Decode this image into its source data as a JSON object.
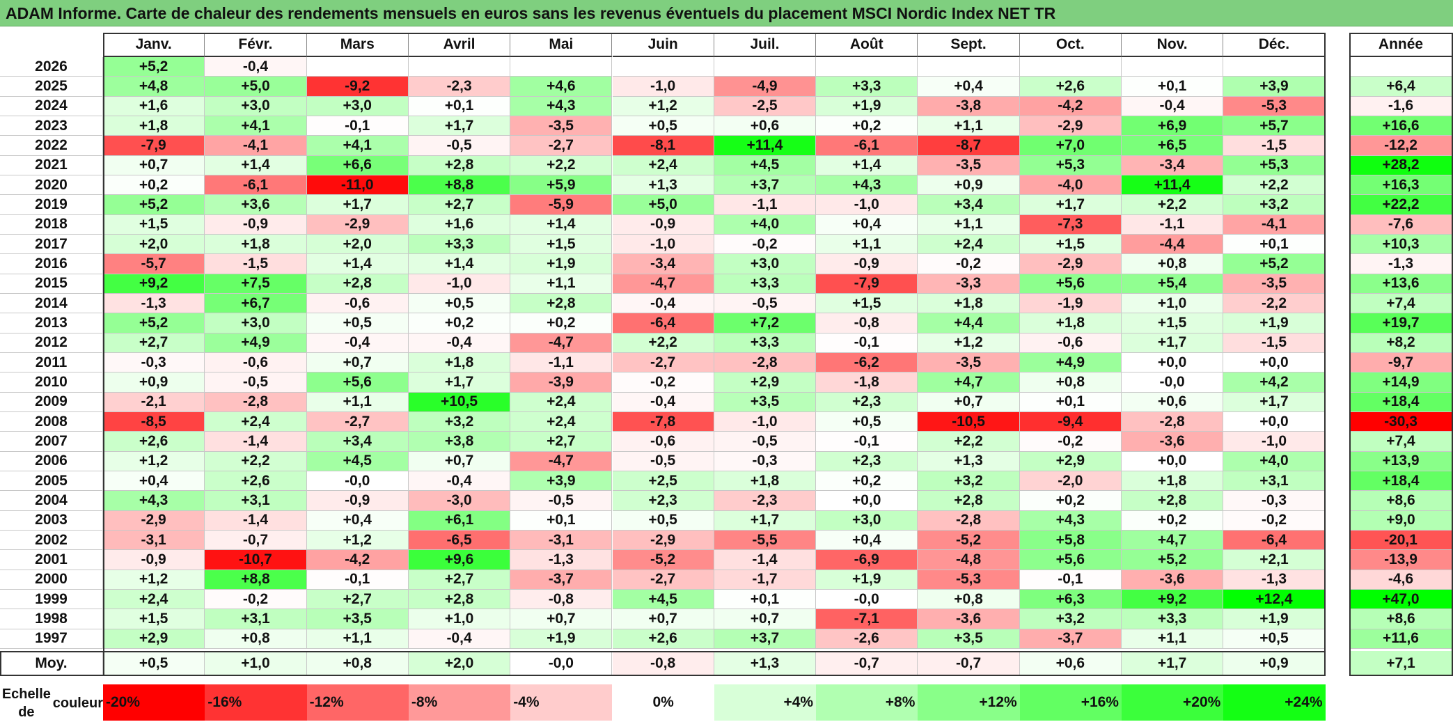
{
  "title": "ADAM Informe. Carte de chaleur des rendements mensuels en euros sans les revenus éventuels du placement MSCI Nordic Index NET TR",
  "chart_data": {
    "type": "heatmap",
    "months": [
      "Janv.",
      "Févr.",
      "Mars",
      "Avril",
      "Mai",
      "Juin",
      "Juil.",
      "Août",
      "Sept.",
      "Oct.",
      "Nov.",
      "Déc."
    ],
    "year_col_label": "Année",
    "rows": [
      {
        "year": "2026",
        "months": [
          "+5,2",
          "-0,4",
          "",
          "",
          "",
          "",
          "",
          "",
          "",
          "",
          "",
          ""
        ],
        "annual": ""
      },
      {
        "year": "2025",
        "months": [
          "+4,8",
          "+5,0",
          "-9,2",
          "-2,3",
          "+4,6",
          "-1,0",
          "-4,9",
          "+3,3",
          "+0,4",
          "+2,6",
          "+0,1",
          "+3,9"
        ],
        "annual": "+6,4"
      },
      {
        "year": "2024",
        "months": [
          "+1,6",
          "+3,0",
          "+3,0",
          "+0,1",
          "+4,3",
          "+1,2",
          "-2,5",
          "+1,9",
          "-3,8",
          "-4,2",
          "-0,4",
          "-5,3"
        ],
        "annual": "-1,6"
      },
      {
        "year": "2023",
        "months": [
          "+1,8",
          "+4,1",
          "-0,1",
          "+1,7",
          "-3,5",
          "+0,5",
          "+0,6",
          "+0,2",
          "+1,1",
          "-2,9",
          "+6,9",
          "+5,7"
        ],
        "annual": "+16,6"
      },
      {
        "year": "2022",
        "months": [
          "-7,9",
          "-4,1",
          "+4,1",
          "-0,5",
          "-2,7",
          "-8,1",
          "+11,4",
          "-6,1",
          "-8,7",
          "+7,0",
          "+6,5",
          "-1,5"
        ],
        "annual": "-12,2"
      },
      {
        "year": "2021",
        "months": [
          "+0,7",
          "+1,4",
          "+6,6",
          "+2,8",
          "+2,2",
          "+2,4",
          "+4,5",
          "+1,4",
          "-3,5",
          "+5,3",
          "-3,4",
          "+5,3"
        ],
        "annual": "+28,2"
      },
      {
        "year": "2020",
        "months": [
          "+0,2",
          "-6,1",
          "-11,0",
          "+8,8",
          "+5,9",
          "+1,3",
          "+3,7",
          "+4,3",
          "+0,9",
          "-4,0",
          "+11,4",
          "+2,2"
        ],
        "annual": "+16,3"
      },
      {
        "year": "2019",
        "months": [
          "+5,2",
          "+3,6",
          "+1,7",
          "+2,7",
          "-5,9",
          "+5,0",
          "-1,1",
          "-1,0",
          "+3,4",
          "+1,7",
          "+2,2",
          "+3,2"
        ],
        "annual": "+22,2"
      },
      {
        "year": "2018",
        "months": [
          "+1,5",
          "-0,9",
          "-2,9",
          "+1,6",
          "+1,4",
          "-0,9",
          "+4,0",
          "+0,4",
          "+1,1",
          "-7,3",
          "-1,1",
          "-4,1"
        ],
        "annual": "-7,6"
      },
      {
        "year": "2017",
        "months": [
          "+2,0",
          "+1,8",
          "+2,0",
          "+3,3",
          "+1,5",
          "-1,0",
          "-0,2",
          "+1,1",
          "+2,4",
          "+1,5",
          "-4,4",
          "+0,1"
        ],
        "annual": "+10,3"
      },
      {
        "year": "2016",
        "months": [
          "-5,7",
          "-1,5",
          "+1,4",
          "+1,4",
          "+1,9",
          "-3,4",
          "+3,0",
          "-0,9",
          "-0,2",
          "-2,9",
          "+0,8",
          "+5,2"
        ],
        "annual": "-1,3"
      },
      {
        "year": "2015",
        "months": [
          "+9,2",
          "+7,5",
          "+2,8",
          "-1,0",
          "+1,1",
          "-4,7",
          "+3,3",
          "-7,9",
          "-3,3",
          "+5,6",
          "+5,4",
          "-3,5"
        ],
        "annual": "+13,6"
      },
      {
        "year": "2014",
        "months": [
          "-1,3",
          "+6,7",
          "-0,6",
          "+0,5",
          "+2,8",
          "-0,4",
          "-0,5",
          "+1,5",
          "+1,8",
          "-1,9",
          "+1,0",
          "-2,2"
        ],
        "annual": "+7,4"
      },
      {
        "year": "2013",
        "months": [
          "+5,2",
          "+3,0",
          "+0,5",
          "+0,2",
          "+0,2",
          "-6,4",
          "+7,2",
          "-0,8",
          "+4,4",
          "+1,8",
          "+1,5",
          "+1,9"
        ],
        "annual": "+19,7"
      },
      {
        "year": "2012",
        "months": [
          "+2,7",
          "+4,9",
          "-0,4",
          "-0,4",
          "-4,7",
          "+2,2",
          "+3,3",
          "-0,1",
          "+1,2",
          "-0,6",
          "+1,7",
          "-1,5"
        ],
        "annual": "+8,2"
      },
      {
        "year": "2011",
        "months": [
          "-0,3",
          "-0,6",
          "+0,7",
          "+1,8",
          "-1,1",
          "-2,7",
          "-2,8",
          "-6,2",
          "-3,5",
          "+4,9",
          "+0,0",
          "+0,0"
        ],
        "annual": "-9,7"
      },
      {
        "year": "2010",
        "months": [
          "+0,9",
          "-0,5",
          "+5,6",
          "+1,7",
          "-3,9",
          "-0,2",
          "+2,9",
          "-1,8",
          "+4,7",
          "+0,8",
          "-0,0",
          "+4,2"
        ],
        "annual": "+14,9"
      },
      {
        "year": "2009",
        "months": [
          "-2,1",
          "-2,8",
          "+1,1",
          "+10,5",
          "+2,4",
          "-0,4",
          "+3,5",
          "+2,3",
          "+0,7",
          "+0,1",
          "+0,6",
          "+1,7"
        ],
        "annual": "+18,4"
      },
      {
        "year": "2008",
        "months": [
          "-8,5",
          "+2,4",
          "-2,7",
          "+3,2",
          "+2,4",
          "-7,8",
          "-1,0",
          "+0,5",
          "-10,5",
          "-9,4",
          "-2,8",
          "+0,0"
        ],
        "annual": "-30,3"
      },
      {
        "year": "2007",
        "months": [
          "+2,6",
          "-1,4",
          "+3,4",
          "+3,8",
          "+2,7",
          "-0,6",
          "-0,5",
          "-0,1",
          "+2,2",
          "-0,2",
          "-3,6",
          "-1,0"
        ],
        "annual": "+7,4"
      },
      {
        "year": "2006",
        "months": [
          "+1,2",
          "+2,2",
          "+4,5",
          "+0,7",
          "-4,7",
          "-0,5",
          "-0,3",
          "+2,3",
          "+1,3",
          "+2,9",
          "+0,0",
          "+4,0"
        ],
        "annual": "+13,9"
      },
      {
        "year": "2005",
        "months": [
          "+0,4",
          "+2,6",
          "-0,0",
          "-0,4",
          "+3,9",
          "+2,5",
          "+1,8",
          "+0,2",
          "+3,2",
          "-2,0",
          "+1,8",
          "+3,1"
        ],
        "annual": "+18,4"
      },
      {
        "year": "2004",
        "months": [
          "+4,3",
          "+3,1",
          "-0,9",
          "-3,0",
          "-0,5",
          "+2,3",
          "-2,3",
          "+0,0",
          "+2,8",
          "+0,2",
          "+2,8",
          "-0,3"
        ],
        "annual": "+8,6"
      },
      {
        "year": "2003",
        "months": [
          "-2,9",
          "-1,4",
          "+0,4",
          "+6,1",
          "+0,1",
          "+0,5",
          "+1,7",
          "+3,0",
          "-2,8",
          "+4,3",
          "+0,2",
          "-0,2"
        ],
        "annual": "+9,0"
      },
      {
        "year": "2002",
        "months": [
          "-3,1",
          "-0,7",
          "+1,2",
          "-6,5",
          "-3,1",
          "-2,9",
          "-5,5",
          "+0,4",
          "-5,2",
          "+5,8",
          "+4,7",
          "-6,4"
        ],
        "annual": "-20,1"
      },
      {
        "year": "2001",
        "months": [
          "-0,9",
          "-10,7",
          "-4,2",
          "+9,6",
          "-1,3",
          "-5,2",
          "-1,4",
          "-6,9",
          "-4,8",
          "+5,6",
          "+5,2",
          "+2,1"
        ],
        "annual": "-13,9"
      },
      {
        "year": "2000",
        "months": [
          "+1,2",
          "+8,8",
          "-0,1",
          "+2,7",
          "-3,7",
          "-2,7",
          "-1,7",
          "+1,9",
          "-5,3",
          "-0,1",
          "-3,6",
          "-1,3"
        ],
        "annual": "-4,6"
      },
      {
        "year": "1999",
        "months": [
          "+2,4",
          "-0,2",
          "+2,7",
          "+2,8",
          "-0,8",
          "+4,5",
          "+0,1",
          "-0,0",
          "+0,8",
          "+6,3",
          "+9,2",
          "+12,4"
        ],
        "annual": "+47,0"
      },
      {
        "year": "1998",
        "months": [
          "+1,5",
          "+3,1",
          "+3,5",
          "+1,0",
          "+0,7",
          "+0,7",
          "+0,7",
          "-7,1",
          "-3,6",
          "+3,2",
          "+3,3",
          "+1,9"
        ],
        "annual": "+8,6"
      },
      {
        "year": "1997",
        "months": [
          "+2,9",
          "+0,8",
          "+1,1",
          "-0,4",
          "+1,9",
          "+2,6",
          "+3,7",
          "-2,6",
          "+3,5",
          "-3,7",
          "+1,1",
          "+0,5"
        ],
        "annual": "+11,6"
      }
    ],
    "average": {
      "label": "Moy.",
      "months": [
        "+0,5",
        "+1,0",
        "+0,8",
        "+2,0",
        "-0,0",
        "-0,8",
        "+1,3",
        "-0,7",
        "-0,7",
        "+0,6",
        "+1,7",
        "+0,9"
      ],
      "annual": "+7,1"
    },
    "scale": {
      "label_line1": "Echelle de",
      "label_line2": "couleur",
      "steps": [
        "-20%",
        "-16%",
        "-12%",
        "-8%",
        "-4%",
        "0%",
        "+4%",
        "+8%",
        "+12%",
        "+16%",
        "+20%",
        "+24%"
      ]
    },
    "colors": {
      "negative": "#ff0000",
      "positive": "#00ff00",
      "neutral": "#ffffff",
      "title_bg": "#7fcf7f"
    }
  }
}
